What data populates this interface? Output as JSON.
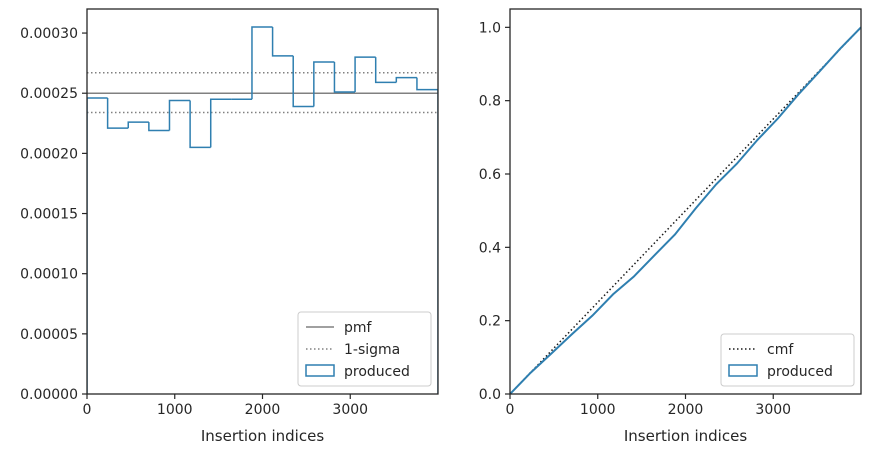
{
  "chart_data": [
    {
      "type": "step-histogram",
      "xlabel": "Insertion indices",
      "ylabel": "",
      "xlim": [
        0,
        4000
      ],
      "ylim": [
        0,
        0.00032
      ],
      "xticks": [
        0,
        1000,
        2000,
        3000
      ],
      "xtick_labels": [
        "0",
        "1000",
        "2000",
        "3000"
      ],
      "yticks": [
        0,
        5e-05,
        0.0001,
        0.00015,
        0.0002,
        0.00025,
        0.0003
      ],
      "ytick_labels": [
        "0.00000",
        "0.00005",
        "0.00010",
        "0.00015",
        "0.00020",
        "0.00025",
        "0.00030"
      ],
      "bin_edges": [
        0,
        235,
        470,
        705,
        940,
        1175,
        1410,
        1645,
        1880,
        2115,
        2350,
        2585,
        2820,
        3055,
        3290,
        3525,
        3760,
        4000
      ],
      "histogram": {
        "name": "produced",
        "values": [
          0.000246,
          0.000221,
          0.000226,
          0.000219,
          0.000244,
          0.000205,
          0.000245,
          0.000245,
          0.000305,
          0.000281,
          0.000239,
          0.000276,
          0.000251,
          0.00028,
          0.000259,
          0.000263,
          0.000253
        ]
      },
      "lines": [
        {
          "name": "pmf",
          "y": 0.00025,
          "style": "solid"
        },
        {
          "name": "1-sigma",
          "y": 0.000267,
          "style": "dotted"
        },
        {
          "name": "1-sigma",
          "y": 0.000234,
          "style": "dotted",
          "legend": false
        }
      ],
      "legend": {
        "placement": "lower-right",
        "entries": [
          {
            "label": "pmf",
            "kind": "line-solid"
          },
          {
            "label": "1-sigma",
            "kind": "line-dotted"
          },
          {
            "label": "produced",
            "kind": "patch"
          }
        ]
      },
      "grid": false
    },
    {
      "type": "line",
      "xlabel": "Insertion indices",
      "ylabel": "",
      "xlim": [
        0,
        4000
      ],
      "ylim": [
        0,
        1.05
      ],
      "xticks": [
        0,
        1000,
        2000,
        3000
      ],
      "xtick_labels": [
        "0",
        "1000",
        "2000",
        "3000"
      ],
      "yticks": [
        0,
        0.2,
        0.4,
        0.6,
        0.8,
        1.0
      ],
      "ytick_labels": [
        "0.0",
        "0.2",
        "0.4",
        "0.6",
        "0.8",
        "1.0"
      ],
      "series": [
        {
          "name": "cmf",
          "style": "dotted",
          "x": [
            0,
            4000
          ],
          "y": [
            0,
            1.0
          ]
        },
        {
          "name": "produced",
          "style": "solid",
          "x": [
            0,
            235,
            470,
            705,
            940,
            1175,
            1410,
            1645,
            1880,
            2115,
            2350,
            2585,
            2820,
            3055,
            3290,
            3525,
            3760,
            4000
          ],
          "y": [
            0,
            0.058,
            0.11,
            0.163,
            0.214,
            0.272,
            0.32,
            0.378,
            0.435,
            0.506,
            0.572,
            0.628,
            0.693,
            0.752,
            0.818,
            0.879,
            0.941,
            1.0
          ]
        }
      ],
      "legend": {
        "placement": "lower-right",
        "entries": [
          {
            "label": "cmf",
            "kind": "line-dotted"
          },
          {
            "label": "produced",
            "kind": "patch"
          }
        ]
      },
      "grid": false
    }
  ],
  "colors": {
    "produced": "#2f7fb0",
    "reference": "#808080",
    "cmf": "#1a1a1a",
    "axes": "#262626"
  }
}
